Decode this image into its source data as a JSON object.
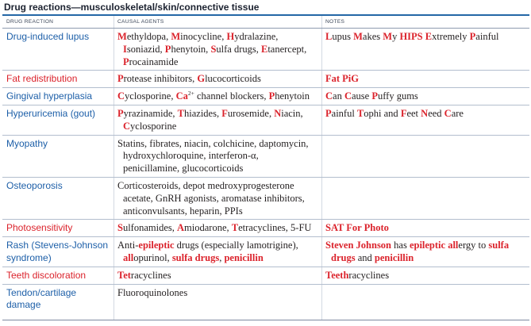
{
  "title": "Drug reactions—musculoskeletal/skin/connective tissue",
  "colors": {
    "rule": "#2467a6",
    "reaction": "#1d5fa8",
    "mnemonic": "#db232c",
    "text": "#231f20",
    "title": "#1c2230",
    "row_rule": "#b3bece",
    "column_rule": "#d3d9e2",
    "header_text": "#3b4658"
  },
  "table": {
    "columns": [
      "DRUG REACTION",
      "CAUSAL AGENTS",
      "NOTES"
    ],
    "rows": [
      {
        "reaction": [
          [
            {
              "text": "Drug-induced lupus"
            }
          ]
        ],
        "agents": [
          [
            {
              "text": "M",
              "red": true
            },
            {
              "text": "ethyldopa, "
            },
            {
              "text": "M",
              "red": true
            },
            {
              "text": "inocycline, "
            },
            {
              "text": "H",
              "red": true
            },
            {
              "text": "ydralazine,"
            }
          ],
          [
            {
              "text": "I",
              "red": true
            },
            {
              "text": "soniazid, "
            },
            {
              "text": "P",
              "red": true
            },
            {
              "text": "henytoin, "
            },
            {
              "text": "S",
              "red": true
            },
            {
              "text": "ulfa drugs, "
            },
            {
              "text": "E",
              "red": true
            },
            {
              "text": "tanercept,"
            }
          ],
          [
            {
              "text": "P",
              "red": true
            },
            {
              "text": "rocainamide"
            }
          ]
        ],
        "notes": [
          [
            {
              "text": "L",
              "red": true
            },
            {
              "text": "upus "
            },
            {
              "text": "M",
              "red": true
            },
            {
              "text": "akes "
            },
            {
              "text": "M",
              "red": true
            },
            {
              "text": "y "
            },
            {
              "text": "HIPS",
              "red": true
            },
            {
              "text": " "
            },
            {
              "text": "E",
              "red": true
            },
            {
              "text": "xtremely "
            },
            {
              "text": "P",
              "red": true
            },
            {
              "text": "ainful"
            }
          ]
        ]
      },
      {
        "reaction": [
          [
            {
              "text": "Fat redistribution",
              "red": true
            }
          ]
        ],
        "agents": [
          [
            {
              "text": "P",
              "red": true
            },
            {
              "text": "rotease inhibitors, "
            },
            {
              "text": "G",
              "red": true
            },
            {
              "text": "lucocorticoids"
            }
          ]
        ],
        "notes": [
          [
            {
              "text": "Fat PiG",
              "red": true
            }
          ]
        ]
      },
      {
        "reaction": [
          [
            {
              "text": "Gingival hyperplasia"
            }
          ]
        ],
        "agents": [
          [
            {
              "text": "C",
              "red": true
            },
            {
              "text": "yclosporine, "
            },
            {
              "text": "Ca",
              "red": true
            },
            {
              "text": "2+",
              "sup": true
            },
            {
              "text": " channel blockers, "
            },
            {
              "text": "P",
              "red": true
            },
            {
              "text": "henytoin"
            }
          ]
        ],
        "notes": [
          [
            {
              "text": "C",
              "red": true
            },
            {
              "text": "an "
            },
            {
              "text": "C",
              "red": true
            },
            {
              "text": "ause "
            },
            {
              "text": "P",
              "red": true
            },
            {
              "text": "uffy gums"
            }
          ]
        ]
      },
      {
        "reaction": [
          [
            {
              "text": "Hyperuricemia (gout)"
            }
          ]
        ],
        "agents": [
          [
            {
              "text": "P",
              "red": true
            },
            {
              "text": "yrazinamide, "
            },
            {
              "text": "T",
              "red": true
            },
            {
              "text": "hiazides, "
            },
            {
              "text": "F",
              "red": true
            },
            {
              "text": "urosemide, "
            },
            {
              "text": "N",
              "red": true
            },
            {
              "text": "iacin,"
            }
          ],
          [
            {
              "text": "C",
              "red": true
            },
            {
              "text": "yclosporine"
            }
          ]
        ],
        "notes": [
          [
            {
              "text": "P",
              "red": true
            },
            {
              "text": "ainful "
            },
            {
              "text": "T",
              "red": true
            },
            {
              "text": "ophi and "
            },
            {
              "text": "F",
              "red": true
            },
            {
              "text": "eet "
            },
            {
              "text": "N",
              "red": true
            },
            {
              "text": "eed "
            },
            {
              "text": "C",
              "red": true
            },
            {
              "text": "are"
            }
          ]
        ]
      },
      {
        "reaction": [
          [
            {
              "text": "Myopathy"
            }
          ]
        ],
        "agents": [
          [
            {
              "text": "Statins, fibrates, niacin, colchicine, daptomycin,"
            }
          ],
          [
            {
              "text": "hydroxychloroquine, interferon-α,"
            }
          ],
          [
            {
              "text": "penicillamine, glucocorticoids"
            }
          ]
        ],
        "notes": []
      },
      {
        "reaction": [
          [
            {
              "text": "Osteoporosis"
            }
          ]
        ],
        "agents": [
          [
            {
              "text": "Corticosteroids, depot medroxyprogesterone"
            }
          ],
          [
            {
              "text": "acetate, GnRH agonists, aromatase inhibitors,"
            }
          ],
          [
            {
              "text": "anticonvulsants, heparin, PPIs"
            }
          ]
        ],
        "notes": []
      },
      {
        "reaction": [
          [
            {
              "text": "Photosensitivity",
              "red": true
            }
          ]
        ],
        "agents": [
          [
            {
              "text": "S",
              "red": true
            },
            {
              "text": "ulfonamides, "
            },
            {
              "text": "A",
              "red": true
            },
            {
              "text": "miodarone, "
            },
            {
              "text": "T",
              "red": true
            },
            {
              "text": "etracyclines, 5-FU"
            }
          ]
        ],
        "notes": [
          [
            {
              "text": "SAT For Photo",
              "red": true
            }
          ]
        ]
      },
      {
        "reaction": [
          [
            {
              "text": "Rash (Stevens-Johnson"
            }
          ],
          [
            {
              "text": "syndrome)"
            }
          ]
        ],
        "agents": [
          [
            {
              "text": "Anti-"
            },
            {
              "text": "epileptic",
              "red": true
            },
            {
              "text": " drugs (especially lamotrigine),"
            }
          ],
          [
            {
              "text": "all",
              "red": true
            },
            {
              "text": "opurinol, "
            },
            {
              "text": "sulfa drugs",
              "red": true
            },
            {
              "text": ", "
            },
            {
              "text": "penicillin",
              "red": true
            }
          ]
        ],
        "notes": [
          [
            {
              "text": "Steven Johnson",
              "red": true
            },
            {
              "text": " has "
            },
            {
              "text": "epileptic",
              "red": true
            },
            {
              "text": " "
            },
            {
              "text": "all",
              "red": true
            },
            {
              "text": "ergy to "
            },
            {
              "text": "sulfa",
              "red": true
            }
          ],
          [
            {
              "text": "drugs",
              "red": true
            },
            {
              "text": " and "
            },
            {
              "text": "penicillin",
              "red": true
            }
          ]
        ]
      },
      {
        "reaction": [
          [
            {
              "text": "Teeth discoloration",
              "red": true
            }
          ]
        ],
        "agents": [
          [
            {
              "text": "Tet",
              "red": true
            },
            {
              "text": "racyclines"
            }
          ]
        ],
        "notes": [
          [
            {
              "text": "Teeth",
              "red": true
            },
            {
              "text": "racyclines"
            }
          ]
        ]
      },
      {
        "reaction": [
          [
            {
              "text": "Tendon/cartilage"
            }
          ],
          [
            {
              "text": "damage"
            }
          ]
        ],
        "agents": [
          [
            {
              "text": "Fluoroquinolones"
            }
          ]
        ],
        "notes": []
      }
    ]
  }
}
